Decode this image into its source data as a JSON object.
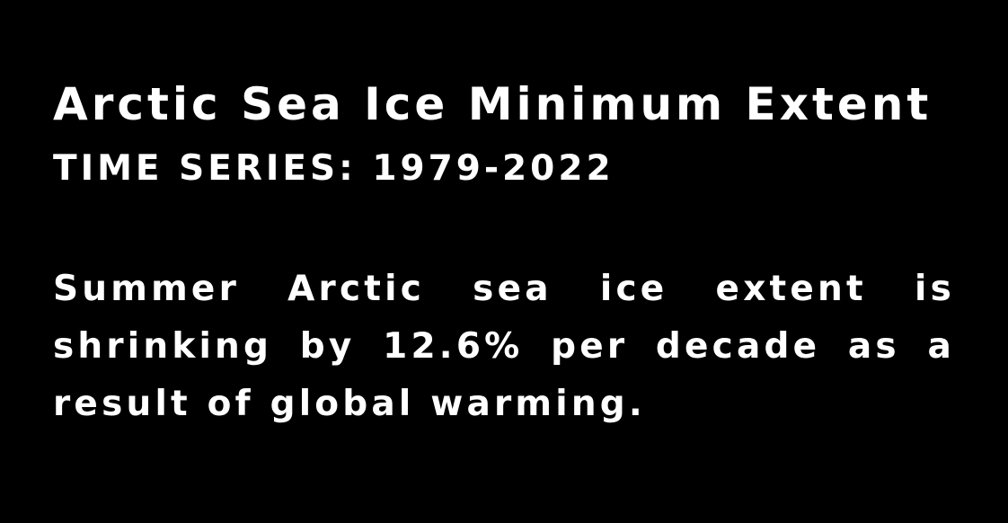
{
  "title": "Arctic Sea Ice Minimum Extent",
  "subtitle": "TIME SERIES: 1979-2022",
  "description": "Summer Arctic sea ice extent is shrinking by 12.6% per decade as a result of global warming.",
  "colors": {
    "background": "#000000",
    "text": "#ffffff"
  }
}
